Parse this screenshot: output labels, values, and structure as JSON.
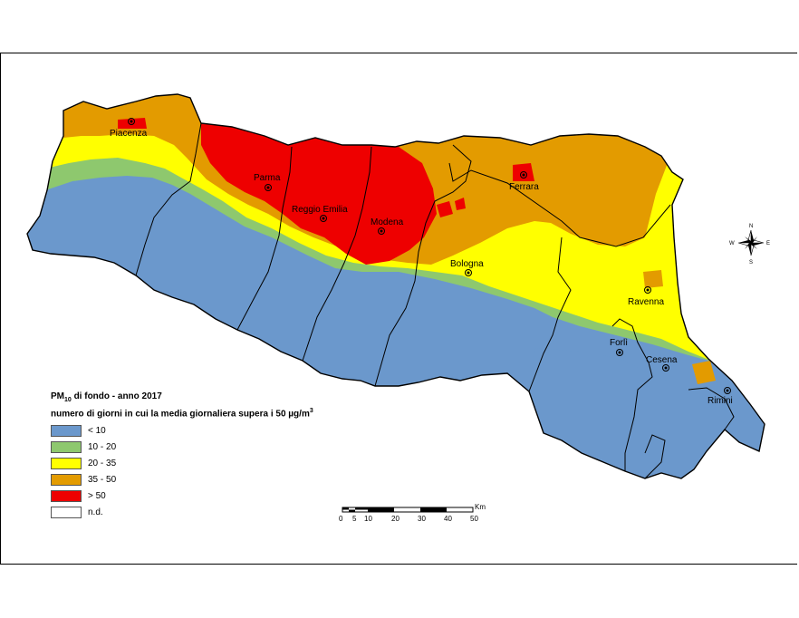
{
  "map": {
    "title_prefix": "PM",
    "title_subscript": "10",
    "title_suffix": " di fondo - anno 2017",
    "subtitle_prefix": "numero di giorni in cui la media giornaliera supera i 50 µg/m",
    "subtitle_superscript": "3",
    "colors": {
      "lt10": "#6b98cc",
      "r10_20": "#8ec86e",
      "r20_35": "#ffff00",
      "r35_50": "#e39b00",
      "gt50": "#ee0000",
      "nd": "#ffffff"
    }
  },
  "legend": {
    "items": [
      {
        "label": "< 10",
        "color": "#6b98cc"
      },
      {
        "label": "10 - 20",
        "color": "#8ec86e"
      },
      {
        "label": "20 - 35",
        "color": "#ffff00"
      },
      {
        "label": "35 - 50",
        "color": "#e39b00"
      },
      {
        "label": "> 50",
        "color": "#ee0000"
      },
      {
        "label": "n.d.",
        "color": "#ffffff"
      }
    ]
  },
  "cities": {
    "piacenza": "Piacenza",
    "parma": "Parma",
    "reggio": "Reggio Emilia",
    "modena": "Modena",
    "ferrara": "Ferrara",
    "bologna": "Bologna",
    "ravenna": "Ravenna",
    "forli": "Forlì",
    "cesena": "Cesena",
    "rimini": "Rimini"
  },
  "compass": {
    "n": "N",
    "s": "S",
    "e": "E",
    "w": "W"
  },
  "scale": {
    "unit": "Km",
    "ticks": [
      "0",
      "5",
      "10",
      "20",
      "30",
      "40",
      "50"
    ]
  }
}
